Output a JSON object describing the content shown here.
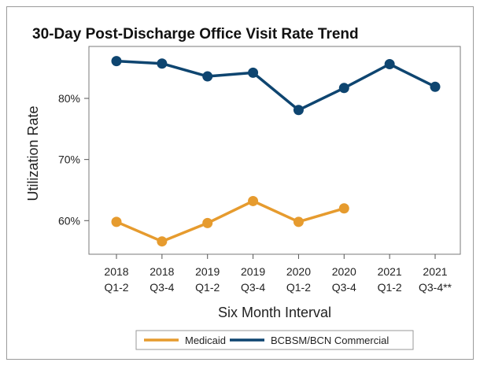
{
  "chart_data": {
    "type": "line",
    "title": "30-Day Post-Discharge Office Visit Rate Trend",
    "xlabel": "Six Month Interval",
    "ylabel": "Utilization Rate",
    "categories": [
      [
        "2018",
        "Q1-2"
      ],
      [
        "2018",
        "Q3-4"
      ],
      [
        "2019",
        "Q1-2"
      ],
      [
        "2019",
        "Q3-4"
      ],
      [
        "2020",
        "Q1-2"
      ],
      [
        "2020",
        "Q3-4"
      ],
      [
        "2021",
        "Q1-2"
      ],
      [
        "2021",
        "Q3-4**"
      ]
    ],
    "yticks": [
      {
        "value": 60,
        "label": "60%"
      },
      {
        "value": 70,
        "label": "70%"
      },
      {
        "value": 80,
        "label": "80%"
      }
    ],
    "ylim": [
      54.5,
      88.5
    ],
    "legend_position": "bottom",
    "series": [
      {
        "name": "Medicaid",
        "color": "#E69B2E",
        "values": [
          59.8,
          56.6,
          59.6,
          63.2,
          59.8,
          62.0,
          null,
          null
        ]
      },
      {
        "name": "BCBSM/BCN Commercial",
        "color": "#0E4570",
        "values": [
          86.1,
          85.7,
          83.6,
          84.2,
          78.1,
          81.7,
          85.6,
          81.9
        ]
      }
    ]
  }
}
